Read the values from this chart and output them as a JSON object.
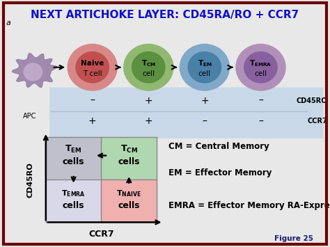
{
  "title": "NEXT ARTICHOKE LAYER: CD45RA/RO + CCR7",
  "title_color": "#1010CC",
  "bg_color": "#E8E8E8",
  "border_color": "#6B0000",
  "fig_width": 4.74,
  "fig_height": 3.55,
  "quadrant": {
    "TEM_color": "#C0C0CC",
    "TCM_color": "#B0D8B0",
    "TEMRA_color": "#D8D8E8",
    "TNAIVE_color": "#F0B0B0"
  },
  "legend_lines": [
    "CM = Central Memory",
    "EM = Effector Memory",
    "EMRA = Effector Memory RA-Expressing"
  ],
  "figure_label": "Figure 25",
  "cell_colors_outer": [
    "#D88888",
    "#90B870",
    "#80A8C8",
    "#B090B8"
  ],
  "cell_colors_inner": [
    "#C05050",
    "#5A9040",
    "#4880A8",
    "#8860A0"
  ],
  "top_labels": {
    "cd45ro": [
      "–",
      "+",
      "+",
      "–"
    ],
    "ccr7": [
      "+",
      "+",
      "–",
      "–"
    ]
  },
  "stripe_color": "#C8D8E8",
  "apc_outer_color": "#9880A8",
  "apc_inner_color": "#C0A8C8"
}
